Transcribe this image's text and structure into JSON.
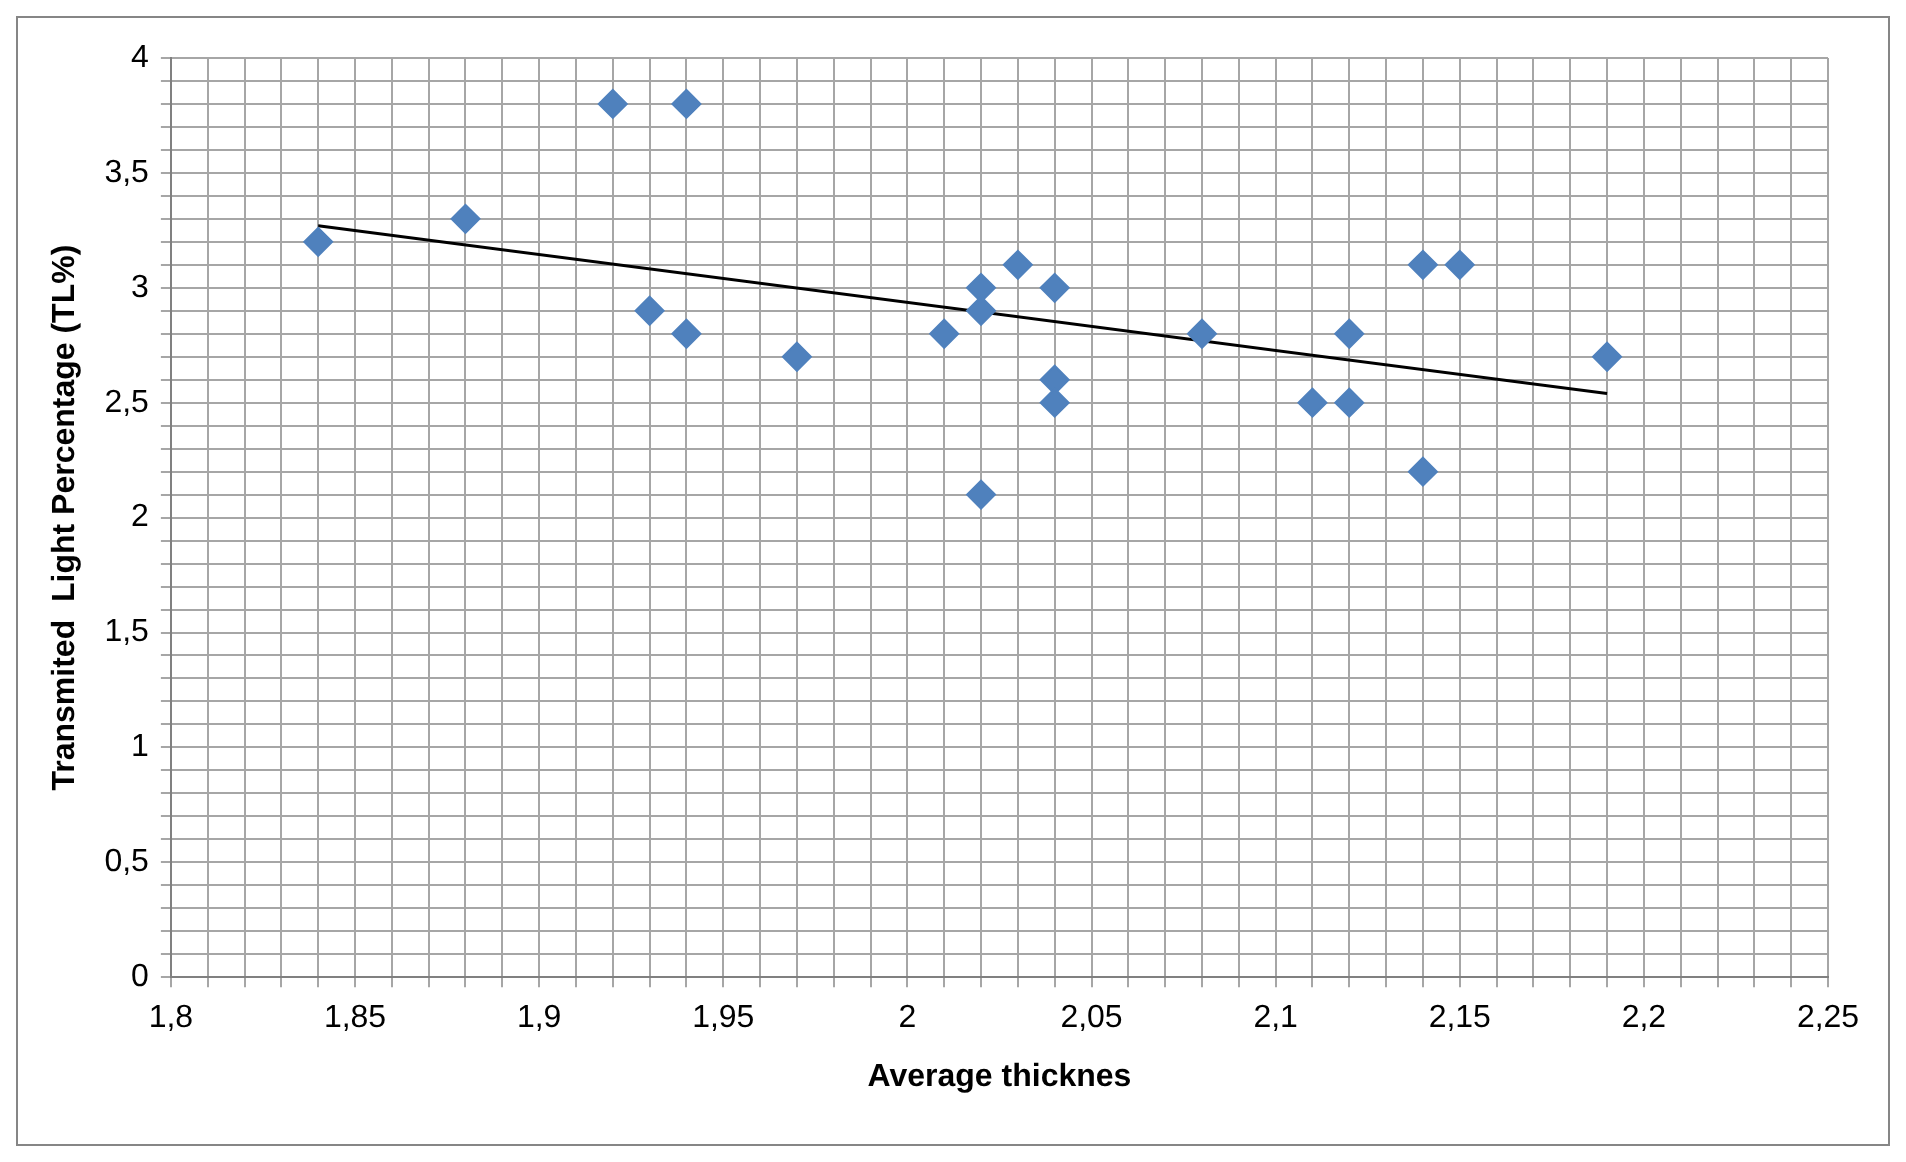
{
  "chart_data": {
    "type": "scatter",
    "xlabel": "Average thicknes",
    "ylabel": "Transmited  Light Percentage (TL%)",
    "series": [
      {
        "type": "scatter",
        "color": "#4f81bd",
        "x": [
          1.84,
          1.88,
          1.92,
          1.94,
          1.93,
          1.94,
          1.97,
          2.01,
          2.02,
          2.02,
          2.02,
          2.03,
          2.04,
          2.04,
          2.04,
          2.08,
          2.11,
          2.12,
          2.12,
          2.14,
          2.15,
          2.14,
          2.19
        ],
        "values": [
          3.2,
          3.3,
          3.8,
          3.8,
          2.9,
          2.8,
          2.7,
          2.8,
          3.0,
          2.9,
          2.1,
          3.1,
          3.0,
          2.6,
          2.5,
          2.8,
          2.5,
          2.5,
          2.8,
          3.1,
          3.1,
          2.2,
          2.7
        ],
        "marker": "diamond"
      },
      {
        "type": "line",
        "color": "#000000",
        "x": [
          1.84,
          2.19
        ],
        "values": [
          3.27,
          2.54
        ],
        "marker": "none"
      }
    ],
    "xlim": [
      1.8,
      2.25
    ],
    "ylim": [
      0,
      4
    ],
    "xticks": [
      {
        "value": 1.8,
        "label": "1,8"
      },
      {
        "value": 1.81,
        "label": null
      },
      {
        "value": 1.82,
        "label": null
      },
      {
        "value": 1.83,
        "label": null
      },
      {
        "value": 1.84,
        "label": null
      },
      {
        "value": 1.85,
        "label": "1,85"
      },
      {
        "value": 1.86,
        "label": null
      },
      {
        "value": 1.87,
        "label": null
      },
      {
        "value": 1.88,
        "label": null
      },
      {
        "value": 1.89,
        "label": null
      },
      {
        "value": 1.9,
        "label": "1,9"
      },
      {
        "value": 1.91,
        "label": null
      },
      {
        "value": 1.92,
        "label": null
      },
      {
        "value": 1.93,
        "label": null
      },
      {
        "value": 1.94,
        "label": null
      },
      {
        "value": 1.95,
        "label": "1,95"
      },
      {
        "value": 1.96,
        "label": null
      },
      {
        "value": 1.97,
        "label": null
      },
      {
        "value": 1.98,
        "label": null
      },
      {
        "value": 1.99,
        "label": null
      },
      2,
      {
        "value": 2.01,
        "label": null
      },
      {
        "value": 2.02,
        "label": null
      },
      {
        "value": 2.03,
        "label": null
      },
      {
        "value": 2.04,
        "label": null
      },
      {
        "value": 2.05,
        "label": "2,05"
      },
      {
        "value": 2.06,
        "label": null
      },
      {
        "value": 2.07,
        "label": null
      },
      {
        "value": 2.08,
        "label": null
      },
      {
        "value": 2.09,
        "label": null
      },
      {
        "value": 2.1,
        "label": "2,1"
      },
      {
        "value": 2.11,
        "label": null
      },
      {
        "value": 2.12,
        "label": null
      },
      {
        "value": 2.13,
        "label": null
      },
      {
        "value": 2.14,
        "label": null
      },
      {
        "value": 2.15,
        "label": "2,15"
      },
      {
        "value": 2.16,
        "label": null
      },
      {
        "value": 2.17,
        "label": null
      },
      {
        "value": 2.18,
        "label": null
      },
      {
        "value": 2.19,
        "label": null
      },
      {
        "value": 2.2,
        "label": "2,2"
      },
      {
        "value": 2.21,
        "label": null
      },
      {
        "value": 2.22,
        "label": null
      },
      {
        "value": 2.23,
        "label": null
      },
      {
        "value": 2.24,
        "label": null
      },
      {
        "value": 2.25,
        "label": "2,25"
      }
    ],
    "yticks": [
      0,
      {
        "value": 0.1,
        "label": null
      },
      {
        "value": 0.2,
        "label": null
      },
      {
        "value": 0.3,
        "label": null
      },
      {
        "value": 0.4,
        "label": null
      },
      {
        "value": 0.5,
        "label": "0,5"
      },
      {
        "value": 0.6,
        "label": null
      },
      {
        "value": 0.7,
        "label": null
      },
      {
        "value": 0.8,
        "label": null
      },
      {
        "value": 0.9,
        "label": null
      },
      1,
      {
        "value": 1.1,
        "label": null
      },
      {
        "value": 1.2,
        "label": null
      },
      {
        "value": 1.3,
        "label": null
      },
      {
        "value": 1.4,
        "label": null
      },
      {
        "value": 1.5,
        "label": "1,5"
      },
      {
        "value": 1.6,
        "label": null
      },
      {
        "value": 1.7,
        "label": null
      },
      {
        "value": 1.8,
        "label": null
      },
      {
        "value": 1.9,
        "label": null
      },
      2,
      {
        "value": 2.1,
        "label": null
      },
      {
        "value": 2.2,
        "label": null
      },
      {
        "value": 2.3,
        "label": null
      },
      {
        "value": 2.4,
        "label": null
      },
      {
        "value": 2.5,
        "label": "2,5"
      },
      {
        "value": 2.6,
        "label": null
      },
      {
        "value": 2.7,
        "label": null
      },
      {
        "value": 2.8,
        "label": null
      },
      {
        "value": 2.9,
        "label": null
      },
      3,
      {
        "value": 3.1,
        "label": null
      },
      {
        "value": 3.2,
        "label": null
      },
      {
        "value": 3.3,
        "label": null
      },
      {
        "value": 3.4,
        "label": null
      },
      {
        "value": 3.5,
        "label": "3,5"
      },
      {
        "value": 3.6,
        "label": null
      },
      {
        "value": 3.7,
        "label": null
      },
      {
        "value": 3.8,
        "label": null
      },
      {
        "value": 3.9,
        "label": null
      },
      4
    ],
    "grid": true,
    "legend": false
  }
}
